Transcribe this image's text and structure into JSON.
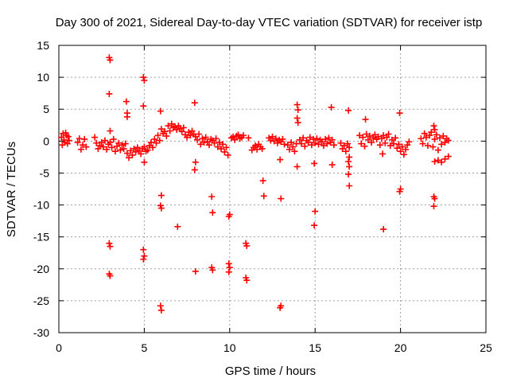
{
  "chart_data": {
    "type": "scatter",
    "title": "Day 300 of 2021, Sidereal Day-to-day VTEC variation (SDTVAR) for receiver istp",
    "xlabel": "GPS time / hours",
    "ylabel": "SDTVAR / TECUs",
    "xlim": [
      0,
      25
    ],
    "ylim": [
      -30,
      15
    ],
    "x_ticks": [
      0,
      5,
      10,
      15,
      20,
      25
    ],
    "y_ticks": [
      15,
      10,
      5,
      0,
      -5,
      -10,
      -15,
      -20,
      -25,
      -30
    ],
    "grid": true,
    "marker": "+",
    "color": "#ff0000",
    "series": [
      {
        "name": "SDTVAR",
        "points": [
          [
            0.15,
            0.6
          ],
          [
            0.2,
            -0.6
          ],
          [
            0.25,
            1.2
          ],
          [
            0.3,
            0.2
          ],
          [
            0.35,
            -0.2
          ],
          [
            0.4,
            1.3
          ],
          [
            0.45,
            0.9
          ],
          [
            0.5,
            -0.4
          ],
          [
            0.55,
            0.7
          ],
          [
            0.6,
            0.1
          ],
          [
            1.1,
            -0.2
          ],
          [
            1.2,
            0.4
          ],
          [
            1.3,
            -1.3
          ],
          [
            1.4,
            -0.6
          ],
          [
            1.5,
            0.3
          ],
          [
            1.6,
            -0.9
          ],
          [
            2.1,
            0.6
          ],
          [
            2.2,
            -0.3
          ],
          [
            2.3,
            -1.2
          ],
          [
            2.4,
            -0.7
          ],
          [
            2.5,
            -0.2
          ],
          [
            2.6,
            -0.9
          ],
          [
            2.7,
            0.1
          ],
          [
            2.8,
            -1.3
          ],
          [
            2.9,
            -0.5
          ],
          [
            3.0,
            -0.2
          ],
          [
            3.1,
            -1.0
          ],
          [
            3.2,
            0.3
          ],
          [
            3.3,
            -1.6
          ],
          [
            3.4,
            -0.8
          ],
          [
            3.5,
            -0.3
          ],
          [
            3.6,
            -1.4
          ],
          [
            3.7,
            -0.6
          ],
          [
            3.8,
            -1.2
          ],
          [
            3.9,
            -0.4
          ],
          [
            4.0,
            -1.9
          ],
          [
            4.1,
            -2.6
          ],
          [
            4.2,
            -1.5
          ],
          [
            4.3,
            -2.2
          ],
          [
            4.4,
            -1.2
          ],
          [
            4.5,
            -1.7
          ],
          [
            4.6,
            -1.0
          ],
          [
            4.7,
            -1.5
          ],
          [
            4.8,
            -2.0
          ],
          [
            4.9,
            -1.2
          ],
          [
            5.0,
            -0.9
          ],
          [
            5.1,
            -1.6
          ],
          [
            5.2,
            -1.4
          ],
          [
            5.3,
            -0.7
          ],
          [
            5.4,
            -0.2
          ],
          [
            5.5,
            -1.0
          ],
          [
            5.6,
            0.3
          ],
          [
            5.7,
            -0.3
          ],
          [
            5.8,
            0.9
          ],
          [
            5.9,
            0.1
          ],
          [
            6.0,
            1.9
          ],
          [
            6.1,
            1.2
          ],
          [
            6.2,
            1.5
          ],
          [
            6.3,
            0.8
          ],
          [
            6.4,
            2.4
          ],
          [
            6.5,
            1.6
          ],
          [
            6.6,
            2.7
          ],
          [
            6.7,
            2.1
          ],
          [
            6.8,
            2.3
          ],
          [
            6.9,
            1.8
          ],
          [
            7.0,
            2.4
          ],
          [
            7.1,
            2.0
          ],
          [
            7.2,
            1.5
          ],
          [
            7.3,
            2.1
          ],
          [
            7.4,
            1.0
          ],
          [
            7.5,
            0.6
          ],
          [
            7.6,
            1.4
          ],
          [
            7.7,
            0.9
          ],
          [
            7.8,
            1.6
          ],
          [
            7.9,
            1.1
          ],
          [
            8.0,
            0.7
          ],
          [
            8.1,
            0.2
          ],
          [
            8.2,
            1.1
          ],
          [
            8.3,
            -0.5
          ],
          [
            8.4,
            0.4
          ],
          [
            8.5,
            -0.2
          ],
          [
            8.6,
            0.6
          ],
          [
            8.7,
            -0.1
          ],
          [
            8.8,
            -0.6
          ],
          [
            8.9,
            0.3
          ],
          [
            9.0,
            0.1
          ],
          [
            9.1,
            -0.3
          ],
          [
            9.2,
            0.4
          ],
          [
            9.3,
            -0.9
          ],
          [
            9.4,
            -0.2
          ],
          [
            9.5,
            -1.2
          ],
          [
            9.6,
            -0.5
          ],
          [
            9.7,
            -1.7
          ],
          [
            9.8,
            -1.0
          ],
          [
            9.9,
            -2.2
          ],
          [
            10.1,
            0.5
          ],
          [
            10.2,
            0.7
          ],
          [
            10.3,
            0.2
          ],
          [
            10.4,
            0.8
          ],
          [
            10.5,
            1.0
          ],
          [
            10.6,
            0.4
          ],
          [
            10.7,
            0.6
          ],
          [
            10.8,
            0.9
          ],
          [
            11.1,
            0.5
          ],
          [
            11.3,
            -1.4
          ],
          [
            11.4,
            -1.0
          ],
          [
            11.5,
            -0.7
          ],
          [
            11.6,
            -1.3
          ],
          [
            11.7,
            -0.5
          ],
          [
            11.8,
            -0.9
          ],
          [
            11.9,
            -1.2
          ],
          [
            12.3,
            0.5
          ],
          [
            12.4,
            0.1
          ],
          [
            12.5,
            0.7
          ],
          [
            12.6,
            0.0
          ],
          [
            12.7,
            0.4
          ],
          [
            12.8,
            -0.3
          ],
          [
            12.9,
            0.2
          ],
          [
            13.0,
            -0.1
          ],
          [
            13.1,
            0.3
          ],
          [
            13.2,
            -0.5
          ],
          [
            13.4,
            -0.6
          ],
          [
            13.5,
            -1.3
          ],
          [
            13.6,
            -0.2
          ],
          [
            13.7,
            -0.9
          ],
          [
            13.8,
            -1.6
          ],
          [
            13.9,
            -0.4
          ],
          [
            14.1,
            0.2
          ],
          [
            14.2,
            -0.4
          ],
          [
            14.3,
            0.5
          ],
          [
            14.4,
            -0.8
          ],
          [
            14.5,
            0.1
          ],
          [
            14.6,
            -0.2
          ],
          [
            14.7,
            0.6
          ],
          [
            14.8,
            -0.6
          ],
          [
            14.9,
            0.3
          ],
          [
            15.0,
            -0.3
          ],
          [
            15.1,
            0.4
          ],
          [
            15.2,
            -0.5
          ],
          [
            15.3,
            0.2
          ],
          [
            15.4,
            -0.1
          ],
          [
            15.5,
            -0.7
          ],
          [
            15.6,
            0.3
          ],
          [
            15.7,
            -0.4
          ],
          [
            15.8,
            0.5
          ],
          [
            15.9,
            -0.2
          ],
          [
            16.0,
            0.2
          ],
          [
            16.1,
            -0.6
          ],
          [
            16.5,
            -0.3
          ],
          [
            16.6,
            -1.2
          ],
          [
            16.7,
            -0.7
          ],
          [
            16.8,
            -1.6
          ],
          [
            16.9,
            -0.4
          ],
          [
            17.0,
            -1.0
          ],
          [
            17.6,
            0.9
          ],
          [
            17.7,
            -0.4
          ],
          [
            17.8,
            0.6
          ],
          [
            17.9,
            -0.8
          ],
          [
            18.0,
            1.1
          ],
          [
            18.1,
            0.2
          ],
          [
            18.2,
            0.8
          ],
          [
            18.3,
            -0.2
          ],
          [
            18.4,
            0.5
          ],
          [
            18.5,
            1.0
          ],
          [
            18.6,
            0.3
          ],
          [
            18.7,
            0.7
          ],
          [
            18.8,
            -0.6
          ],
          [
            18.9,
            0.4
          ],
          [
            19.0,
            0.9
          ],
          [
            19.1,
            -0.3
          ],
          [
            19.2,
            0.6
          ],
          [
            19.3,
            1.1
          ],
          [
            19.4,
            -0.7
          ],
          [
            19.5,
            0.2
          ],
          [
            19.6,
            -0.4
          ],
          [
            19.7,
            0.5
          ],
          [
            19.8,
            -1.1
          ],
          [
            19.9,
            -0.5
          ],
          [
            20.0,
            -1.6
          ],
          [
            20.1,
            -0.9
          ],
          [
            20.2,
            -2.1
          ],
          [
            20.3,
            -1.3
          ],
          [
            20.4,
            -0.6
          ],
          [
            20.5,
            -0.1
          ],
          [
            21.2,
            0.4
          ],
          [
            21.3,
            -0.4
          ],
          [
            21.4,
            1.2
          ],
          [
            21.5,
            0.6
          ],
          [
            21.6,
            -0.7
          ],
          [
            21.7,
            0.9
          ],
          [
            21.8,
            1.4
          ],
          [
            21.9,
            -0.9
          ],
          [
            22.0,
            0.3
          ],
          [
            22.1,
            1.0
          ],
          [
            22.2,
            -1.4
          ],
          [
            22.3,
            0.5
          ],
          [
            22.4,
            -0.5
          ],
          [
            22.5,
            0.8
          ],
          [
            22.6,
            -0.2
          ],
          [
            22.7,
            0.4
          ],
          [
            22.8,
            0.1
          ],
          [
            22.0,
            -3.2
          ],
          [
            22.2,
            -3.0
          ],
          [
            22.4,
            -3.3
          ],
          [
            22.6,
            -2.8
          ],
          [
            22.8,
            -2.4
          ],
          [
            2.95,
            13.1
          ],
          [
            3.0,
            12.7
          ],
          [
            2.95,
            7.4
          ],
          [
            3.0,
            1.6
          ],
          [
            2.95,
            -16.0
          ],
          [
            3.0,
            -16.5
          ],
          [
            2.95,
            -20.8
          ],
          [
            3.0,
            -21.1
          ],
          [
            3.95,
            6.2
          ],
          [
            4.0,
            4.4
          ],
          [
            4.0,
            3.8
          ],
          [
            4.95,
            10.0
          ],
          [
            5.0,
            9.5
          ],
          [
            4.95,
            5.5
          ],
          [
            5.0,
            -3.3
          ],
          [
            4.95,
            -17.0
          ],
          [
            5.0,
            -18.0
          ],
          [
            4.95,
            -18.5
          ],
          [
            5.95,
            4.7
          ],
          [
            6.0,
            -8.5
          ],
          [
            5.95,
            -10.1
          ],
          [
            6.0,
            -10.5
          ],
          [
            5.95,
            -25.8
          ],
          [
            6.0,
            -26.5
          ],
          [
            6.95,
            -13.4
          ],
          [
            7.95,
            6.0
          ],
          [
            8.0,
            -3.3
          ],
          [
            7.95,
            -4.5
          ],
          [
            8.0,
            -20.4
          ],
          [
            8.95,
            -8.7
          ],
          [
            9.0,
            -11.2
          ],
          [
            8.95,
            -19.8
          ],
          [
            9.0,
            -20.2
          ],
          [
            9.95,
            -11.8
          ],
          [
            10.0,
            -11.5
          ],
          [
            9.95,
            -19.2
          ],
          [
            10.0,
            -19.8
          ],
          [
            9.95,
            -20.5
          ],
          [
            10.95,
            -16.0
          ],
          [
            11.0,
            -16.4
          ],
          [
            10.95,
            -21.4
          ],
          [
            11.0,
            -21.8
          ],
          [
            11.95,
            -6.2
          ],
          [
            12.0,
            -8.6
          ],
          [
            12.95,
            -2.9
          ],
          [
            13.0,
            -9.0
          ],
          [
            12.95,
            -26.1
          ],
          [
            13.0,
            -25.8
          ],
          [
            13.95,
            5.7
          ],
          [
            14.0,
            4.9
          ],
          [
            13.95,
            3.6
          ],
          [
            14.0,
            2.9
          ],
          [
            13.95,
            -4.0
          ],
          [
            14.95,
            -3.5
          ],
          [
            15.0,
            -11.0
          ],
          [
            14.95,
            -13.2
          ],
          [
            15.95,
            5.3
          ],
          [
            16.0,
            -3.7
          ],
          [
            16.95,
            4.8
          ],
          [
            17.0,
            -2.5
          ],
          [
            16.95,
            -3.2
          ],
          [
            17.0,
            -4.0
          ],
          [
            16.95,
            -5.2
          ],
          [
            17.0,
            -7.0
          ],
          [
            17.95,
            3.4
          ],
          [
            18.95,
            -2.0
          ],
          [
            19.0,
            -13.8
          ],
          [
            19.95,
            4.4
          ],
          [
            20.0,
            -7.5
          ],
          [
            19.95,
            -7.9
          ],
          [
            21.95,
            2.4
          ],
          [
            22.0,
            1.8
          ],
          [
            21.95,
            -8.7
          ],
          [
            22.0,
            -9.0
          ],
          [
            21.95,
            -10.2
          ]
        ]
      }
    ]
  }
}
